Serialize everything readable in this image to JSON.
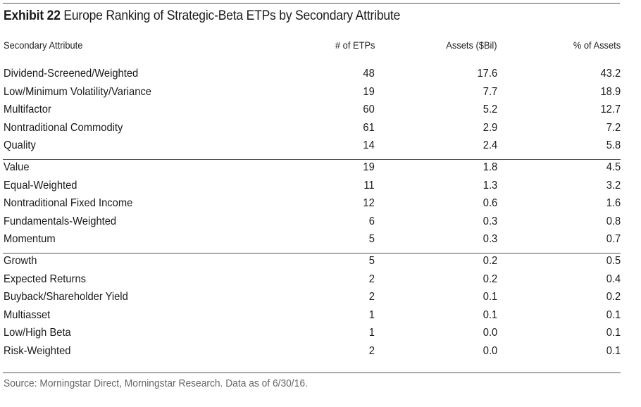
{
  "exhibit": {
    "label": "Exhibit 22",
    "title": "Europe Ranking of Strategic-Beta ETPs by Secondary Attribute"
  },
  "table": {
    "columns": [
      "Secondary Attribute",
      "# of ETPs",
      "Assets ($Bil)",
      "% of Assets"
    ],
    "groups": [
      [
        [
          "Dividend-Screened/Weighted",
          "48",
          "17.6",
          "43.2"
        ],
        [
          "Low/Minimum Volatility/Variance",
          "19",
          "7.7",
          "18.9"
        ],
        [
          "Multifactor",
          "60",
          "5.2",
          "12.7"
        ],
        [
          "Nontraditional Commodity",
          "61",
          "2.9",
          "7.2"
        ],
        [
          "Quality",
          "14",
          "2.4",
          "5.8"
        ]
      ],
      [
        [
          "Value",
          "19",
          "1.8",
          "4.5"
        ],
        [
          "Equal-Weighted",
          "11",
          "1.3",
          "3.2"
        ],
        [
          "Nontraditional Fixed Income",
          "12",
          "0.6",
          "1.6"
        ],
        [
          "Fundamentals-Weighted",
          "6",
          "0.3",
          "0.8"
        ],
        [
          "Momentum",
          "5",
          "0.3",
          "0.7"
        ]
      ],
      [
        [
          "Growth",
          "5",
          "0.2",
          "0.5"
        ],
        [
          "Expected Returns",
          "2",
          "0.2",
          "0.4"
        ],
        [
          "Buyback/Shareholder Yield",
          "2",
          "0.1",
          "0.2"
        ],
        [
          "Multiasset",
          "1",
          "0.1",
          "0.1"
        ],
        [
          "Low/High Beta",
          "1",
          "0.0",
          "0.1"
        ],
        [
          "Risk-Weighted",
          "2",
          "0.0",
          "0.1"
        ]
      ]
    ]
  },
  "source": "Source: Morningstar Direct, Morningstar Research. Data as of 6/30/16."
}
